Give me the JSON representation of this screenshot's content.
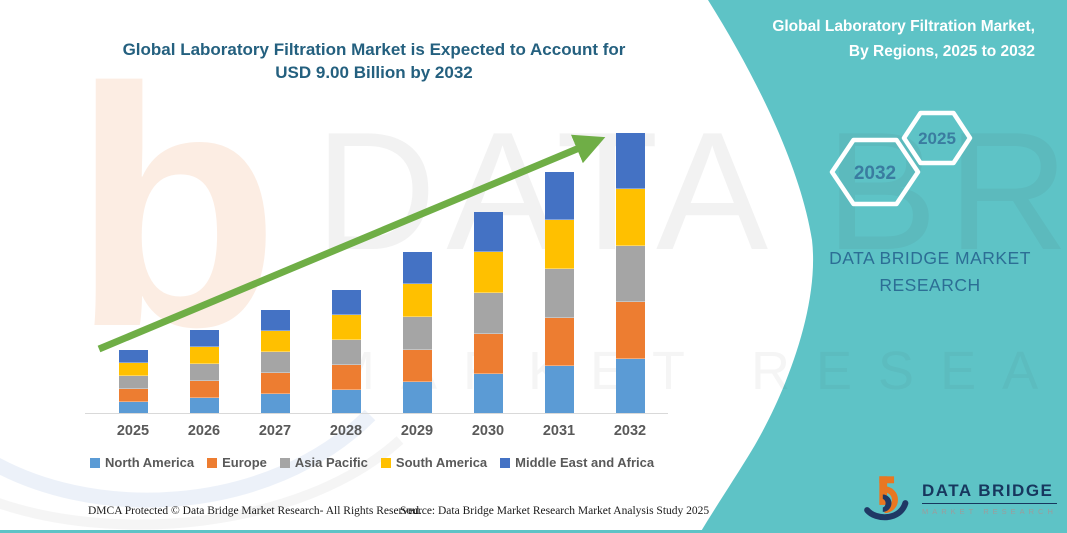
{
  "page": {
    "accent_teal": "#5EC3C6",
    "title_color": "#24607F",
    "arrow_color": "#6FAE46"
  },
  "chart_title": {
    "line1": "Global Laboratory Filtration Market is Expected to Account for",
    "line2": "USD 9.00 Billion by 2032"
  },
  "side_panel": {
    "title_line1": "Global Laboratory Filtration Market,",
    "title_line2": "By Regions, 2025 to 2032",
    "hexagon_back_label": "2032",
    "hexagon_front_label": "2025",
    "brand_line1": "DATA BRIDGE MARKET",
    "brand_line2": "RESEARCH"
  },
  "logo": {
    "name": "DATA BRIDGE",
    "tagline": "MARKET RESEARCH"
  },
  "watermark": {
    "text_main": "DATA BRIDGE",
    "text_sub": "MARKET RESEARCH",
    "letter_b": "b"
  },
  "footer": {
    "dmca": "DMCA Protected © Data Bridge Market Research-  All Rights Reserved.",
    "source": "Source: Data Bridge Market Research  Market Analysis Study 2025"
  },
  "chart_data": {
    "type": "bar",
    "stacked": true,
    "title": "Global Laboratory Filtration Market is Expected to Account for USD 9.00 Billion by 2032",
    "unit": "USD Billion",
    "categories": [
      "2025",
      "2026",
      "2027",
      "2028",
      "2029",
      "2030",
      "2031",
      "2032"
    ],
    "series": [
      {
        "name": "North America",
        "color": "#5B9BD5",
        "values": [
          0.39,
          0.52,
          0.65,
          0.78,
          1.03,
          1.29,
          1.55,
          1.8
        ]
      },
      {
        "name": "Europe",
        "color": "#ED7D31",
        "values": [
          0.39,
          0.52,
          0.65,
          0.78,
          1.03,
          1.29,
          1.55,
          1.8
        ]
      },
      {
        "name": "Asia Pacific",
        "color": "#A5A5A5",
        "values": [
          0.39,
          0.52,
          0.65,
          0.78,
          1.03,
          1.29,
          1.55,
          1.8
        ]
      },
      {
        "name": "South America",
        "color": "#FFC000",
        "values": [
          0.39,
          0.52,
          0.65,
          0.78,
          1.03,
          1.29,
          1.55,
          1.8
        ]
      },
      {
        "name": "Middle East and Africa",
        "color": "#4472C4",
        "values": [
          0.39,
          0.52,
          0.65,
          0.78,
          1.03,
          1.29,
          1.55,
          1.8
        ]
      }
    ],
    "totals_estimated": [
      1.95,
      2.6,
      3.25,
      3.9,
      5.15,
      6.45,
      7.75,
      9.0
    ],
    "ylim": [
      0,
      9.5
    ],
    "gridlines": false,
    "y_axis_labels": false,
    "legend_position": "bottom",
    "trend_arrow": true
  }
}
